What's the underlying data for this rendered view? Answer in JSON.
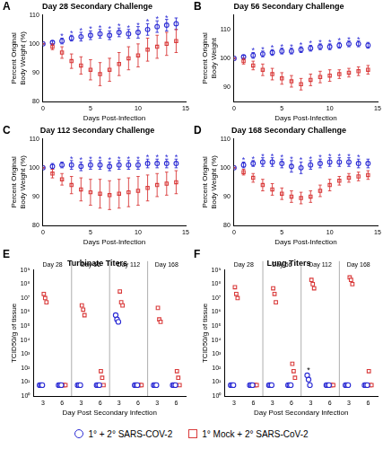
{
  "legend": "bottom",
  "chart_data": [
    {
      "type": "line",
      "panel": "A",
      "title": "Day 28 Secondary Challenge",
      "x_label": "Days Post-Infection",
      "y_label": "Percent Original Body Weight (%)",
      "x": [
        0,
        1,
        2,
        3,
        4,
        5,
        6,
        7,
        8,
        9,
        10,
        11,
        12,
        13,
        14
      ],
      "xlim": [
        0,
        15
      ],
      "xticks": [
        0,
        5,
        10,
        15
      ],
      "ylim": [
        80,
        110
      ],
      "yticks": [
        80,
        90,
        100,
        110
      ],
      "grid": false,
      "series": [
        {
          "name": "1° + 2° SARS-COV-2",
          "color": "#2a2ad4",
          "marker": "circle",
          "line_style": "none",
          "values": [
            100,
            100.5,
            101,
            102,
            102.5,
            103,
            103.5,
            103,
            104,
            103.5,
            104,
            105,
            106,
            106.5,
            107
          ],
          "errors": [
            0,
            0.5,
            1,
            1,
            1.5,
            1.5,
            1.5,
            1.5,
            1.5,
            1.5,
            2,
            2,
            2,
            2,
            2
          ]
        },
        {
          "name": "1° Mock + 2° SARS-CoV-2",
          "color": "#d93a3a",
          "marker": "square",
          "line_style": "none",
          "values": [
            100,
            99,
            97,
            94,
            92.5,
            91,
            89.5,
            91,
            93,
            95,
            96,
            98,
            99,
            100,
            101
          ],
          "errors": [
            0,
            1,
            2,
            2.5,
            3,
            3.5,
            4,
            4,
            4,
            4,
            4,
            4,
            4,
            4,
            4
          ]
        }
      ],
      "annotations": {
        "text": "*",
        "x": [
          2,
          3,
          4,
          5,
          6,
          7,
          8,
          9,
          10,
          11,
          12,
          13
        ]
      }
    },
    {
      "type": "line",
      "panel": "B",
      "title": "Day 56 Secondary Challenge",
      "x_label": "Days Post-Infection",
      "y_label": "Percent Original Body Weight",
      "x": [
        0,
        1,
        2,
        3,
        4,
        5,
        6,
        7,
        8,
        9,
        10,
        11,
        12,
        13,
        14
      ],
      "xlim": [
        0,
        15
      ],
      "xticks": [
        0,
        5,
        10,
        15
      ],
      "ylim": [
        85,
        115
      ],
      "yticks": [
        90,
        100,
        110
      ],
      "grid": false,
      "series": [
        {
          "name": "1° + 2° SARS-COV-2",
          "color": "#2a2ad4",
          "marker": "circle",
          "line_style": "none",
          "values": [
            100,
            100.5,
            101,
            101.5,
            102,
            102.5,
            102.5,
            103,
            103.5,
            104,
            104,
            104.5,
            105,
            105,
            104.5
          ],
          "errors": [
            0,
            0.5,
            1,
            1,
            1,
            1,
            1,
            1,
            1,
            1,
            1,
            1,
            1,
            1,
            1
          ]
        },
        {
          "name": "1° Mock + 2° SARS-CoV-2",
          "color": "#d93a3a",
          "marker": "square",
          "line_style": "none",
          "values": [
            100,
            99,
            97.5,
            96,
            94.5,
            93,
            92,
            91,
            92.5,
            93.5,
            94,
            94.5,
            95,
            95.5,
            96
          ],
          "errors": [
            0,
            1,
            1.5,
            2,
            2,
            2,
            2,
            2,
            2,
            2,
            2,
            1.5,
            1.5,
            1.5,
            1.5
          ]
        }
      ],
      "annotations": {
        "text": "*",
        "x": [
          2,
          3,
          4,
          5,
          6,
          7,
          8,
          9,
          10,
          11,
          12,
          13
        ]
      }
    },
    {
      "type": "line",
      "panel": "C",
      "title": "Day 112 Secondary Challenge",
      "x_label": "Days Post-Infection",
      "y_label": "Percent Original Body Weight (%)",
      "x": [
        0,
        1,
        2,
        3,
        4,
        5,
        6,
        7,
        8,
        9,
        10,
        11,
        12,
        13,
        14
      ],
      "xlim": [
        0,
        15
      ],
      "xticks": [
        0,
        5,
        10,
        15
      ],
      "ylim": [
        80,
        110
      ],
      "yticks": [
        80,
        90,
        100,
        110
      ],
      "grid": false,
      "series": [
        {
          "name": "1° + 2° SARS-COV-2",
          "color": "#2a2ad4",
          "marker": "circle",
          "line_style": "none",
          "values": [
            100,
            100.5,
            101,
            101,
            100.5,
            101,
            101,
            100.5,
            101,
            101,
            101,
            101.5,
            101.5,
            101.5,
            101.5
          ],
          "errors": [
            0,
            1,
            1,
            1.5,
            1.5,
            1.5,
            1.5,
            1.5,
            1.5,
            1.5,
            1.5,
            1.5,
            1.5,
            1.5,
            1.5
          ]
        },
        {
          "name": "1° Mock + 2° SARS-CoV-2",
          "color": "#d93a3a",
          "marker": "square",
          "line_style": "none",
          "values": [
            100,
            98,
            96,
            94,
            92.5,
            91.5,
            91,
            90.5,
            91,
            91.5,
            92,
            93,
            94,
            94.5,
            95
          ],
          "errors": [
            0,
            1.5,
            2,
            3,
            4,
            4.5,
            5,
            5,
            5,
            5,
            5,
            4.5,
            4,
            4,
            4
          ]
        }
      ],
      "annotations": {
        "text": "*",
        "x": [
          3,
          4,
          5,
          6,
          7,
          8,
          9,
          10,
          11,
          12,
          13,
          14
        ]
      }
    },
    {
      "type": "line",
      "panel": "D",
      "title": "Day 168 Secondary Challenge",
      "x_label": "Days Post-Infection",
      "y_label": "Percent Original Body Weight (%)",
      "x": [
        0,
        1,
        2,
        3,
        4,
        5,
        6,
        7,
        8,
        9,
        10,
        11,
        12,
        13,
        14
      ],
      "xlim": [
        0,
        15
      ],
      "xticks": [
        0,
        5,
        10,
        15
      ],
      "ylim": [
        80,
        110
      ],
      "yticks": [
        80,
        90,
        100,
        110
      ],
      "grid": false,
      "series": [
        {
          "name": "1° + 2° SARS-COV-2",
          "color": "#2a2ad4",
          "marker": "circle",
          "line_style": "none",
          "values": [
            100,
            101,
            101.5,
            102,
            102,
            101.5,
            100.5,
            100,
            101,
            101.5,
            102,
            102,
            102,
            101.5,
            101.5
          ],
          "errors": [
            0,
            1,
            1,
            1.5,
            1.5,
            1.5,
            2,
            2,
            1.5,
            1.5,
            1.5,
            1.5,
            1.5,
            1.5,
            1.5
          ]
        },
        {
          "name": "1° Mock + 2° SARS-CoV-2",
          "color": "#d93a3a",
          "marker": "square",
          "line_style": "none",
          "values": [
            100,
            98.5,
            96.5,
            94,
            92.5,
            91,
            90,
            89.5,
            90,
            92,
            94,
            95.5,
            96.5,
            97,
            97.5
          ],
          "errors": [
            0,
            1,
            1.5,
            2,
            2,
            2,
            2,
            2,
            2,
            2,
            2,
            1.5,
            1.5,
            1.5,
            1.5
          ]
        }
      ],
      "annotations": {
        "text": "*",
        "x": [
          1,
          2,
          3,
          4,
          5,
          6,
          7,
          8,
          9,
          10,
          11,
          12,
          13
        ]
      }
    },
    {
      "type": "scatter",
      "panel": "E",
      "title": "Turbinate Titers",
      "x_label": "Day Post Secondary Infection",
      "y_label": "TCID50/g of tissue",
      "groups": [
        "Day 28",
        "Day 56",
        "Day 112",
        "Day 168"
      ],
      "categories": [
        "3",
        "6",
        "3",
        "6",
        "3",
        "6",
        "3",
        "6"
      ],
      "log": "y",
      "ylim": [
        1,
        1000000000
      ],
      "yticks": [
        {
          "value": 1,
          "label": "10⁰"
        },
        {
          "value": 10,
          "label": "10¹"
        },
        {
          "value": 100,
          "label": "10²"
        },
        {
          "value": 1000,
          "label": "10³"
        },
        {
          "value": 10000,
          "label": "10⁴"
        },
        {
          "value": 100000,
          "label": "10⁵"
        },
        {
          "value": 1000000,
          "label": "10⁶"
        },
        {
          "value": 10000000,
          "label": "10⁷"
        },
        {
          "value": 100000000,
          "label": "10⁸"
        },
        {
          "value": 1000000000,
          "label": "10⁹"
        }
      ],
      "grid": false,
      "series": [
        {
          "name": "1° + 2° SARS-COV-2",
          "color": "#2a2ad4",
          "marker": "circle",
          "values": [
            [
              6,
              6,
              6
            ],
            [
              6,
              6,
              6
            ],
            [
              6,
              6,
              6
            ],
            [
              6,
              6,
              6
            ],
            [
              600000,
              300000,
              200000
            ],
            [
              6,
              6,
              6
            ],
            [
              6,
              6,
              6
            ],
            [
              6,
              6,
              6
            ]
          ]
        },
        {
          "name": "1° Mock + 2° SARS-CoV-2",
          "color": "#d93a3a",
          "marker": "square",
          "values": [
            [
              20000000,
              10000000,
              5000000
            ],
            [
              6,
              6,
              6
            ],
            [
              3000000,
              1500000,
              600000
            ],
            [
              60,
              20,
              6
            ],
            [
              30000000,
              5000000,
              3000000
            ],
            [
              6,
              6,
              6
            ],
            [
              2000000,
              300000,
              200000
            ],
            [
              60,
              20,
              6
            ]
          ]
        }
      ]
    },
    {
      "type": "scatter",
      "panel": "F",
      "title": "Lung Titers",
      "x_label": "Day Post Secondary Infection",
      "y_label": "TCID50/g of tissue",
      "groups": [
        "Day 28",
        "Day 56",
        "Day 112",
        "Day 168"
      ],
      "categories": [
        "3",
        "6",
        "3",
        "6",
        "3",
        "6",
        "3",
        "6"
      ],
      "log": "y",
      "ylim": [
        1,
        1000000000
      ],
      "yticks": [
        {
          "value": 1,
          "label": "10⁰"
        },
        {
          "value": 10,
          "label": "10¹"
        },
        {
          "value": 100,
          "label": "10²"
        },
        {
          "value": 1000,
          "label": "10³"
        },
        {
          "value": 10000,
          "label": "10⁴"
        },
        {
          "value": 100000,
          "label": "10⁵"
        },
        {
          "value": 1000000,
          "label": "10⁶"
        },
        {
          "value": 10000000,
          "label": "10⁷"
        },
        {
          "value": 100000000,
          "label": "10⁸"
        },
        {
          "value": 1000000000,
          "label": "10⁹"
        }
      ],
      "grid": false,
      "series": [
        {
          "name": "1° + 2° SARS-COV-2",
          "color": "#2a2ad4",
          "marker": "circle",
          "values": [
            [
              6,
              6,
              6
            ],
            [
              6,
              6,
              6
            ],
            [
              6,
              6,
              6
            ],
            [
              6,
              6,
              6
            ],
            [
              30,
              15,
              6
            ],
            [
              6,
              6,
              6
            ],
            [
              6,
              6,
              6
            ],
            [
              6,
              6,
              6
            ]
          ]
        },
        {
          "name": "1° Mock + 2° SARS-CoV-2",
          "color": "#d93a3a",
          "marker": "square",
          "values": [
            [
              60000000,
              20000000,
              10000000
            ],
            [
              6,
              6,
              6
            ],
            [
              50000000,
              20000000,
              5000000
            ],
            [
              200,
              60,
              20
            ],
            [
              200000000,
              100000000,
              50000000
            ],
            [
              6,
              6,
              6
            ],
            [
              300000000,
              200000000,
              100000000
            ],
            [
              60,
              6,
              6
            ]
          ]
        }
      ],
      "annotations": {
        "text": "*",
        "x": [
          4
        ]
      }
    }
  ]
}
